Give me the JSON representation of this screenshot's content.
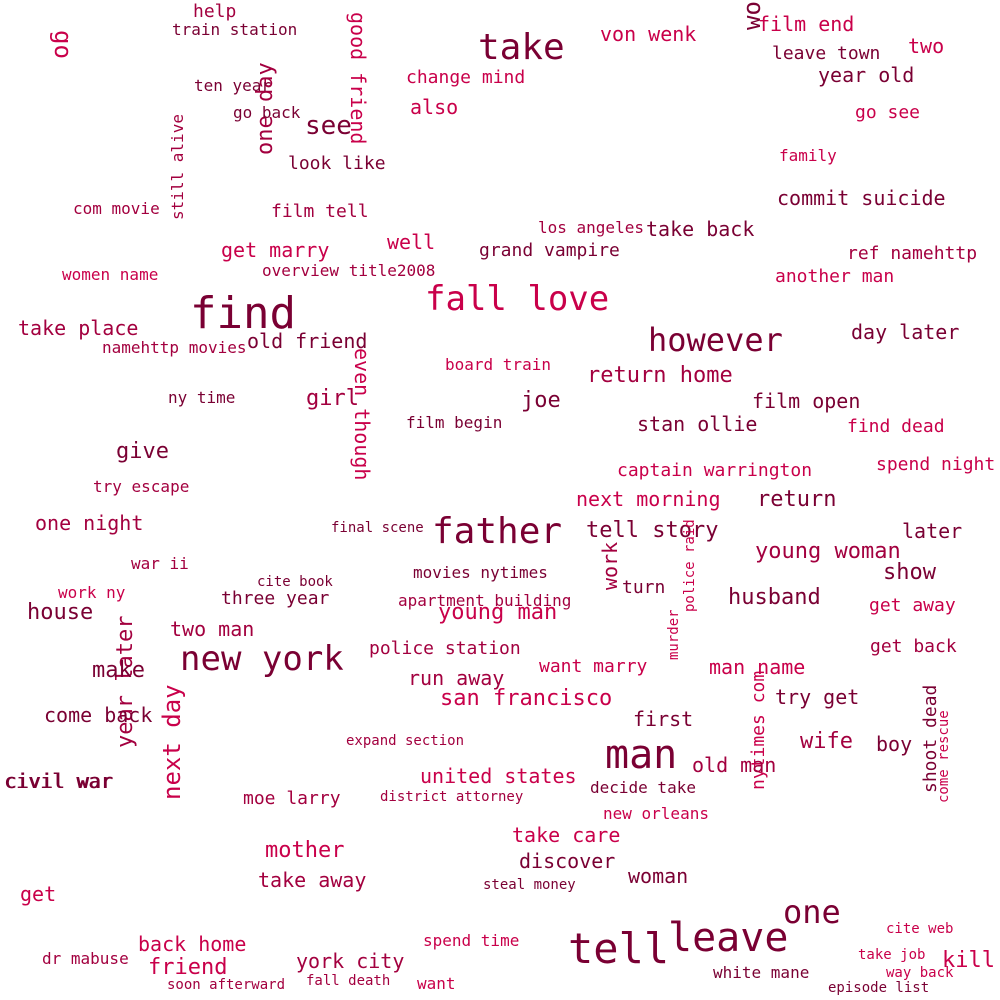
{
  "colors": [
    "#7a0033",
    "#a3003f",
    "#c9004a",
    "#e0005a",
    "#ff2a6a"
  ],
  "words": [
    {
      "t": "find",
      "c": 0
    },
    {
      "t": "fall love",
      "c": 2
    },
    {
      "t": "father",
      "c": 0
    },
    {
      "t": "new york",
      "c": 0
    },
    {
      "t": "man",
      "c": 0
    },
    {
      "t": "tell",
      "c": 0
    },
    {
      "t": "leave",
      "c": 0
    },
    {
      "t": "take",
      "c": 0
    },
    {
      "t": "however",
      "c": 0
    },
    {
      "t": "one",
      "c": 0
    },
    {
      "t": "see",
      "c": 0
    },
    {
      "t": "go",
      "c": 2
    },
    {
      "t": "world war",
      "c": 0
    },
    {
      "t": "good friend",
      "c": 2
    },
    {
      "t": "one day",
      "c": 1
    },
    {
      "t": "even though",
      "c": 2
    },
    {
      "t": "year later",
      "c": 1
    },
    {
      "t": "next day",
      "c": 2
    },
    {
      "t": "nytimes com",
      "c": 2
    },
    {
      "t": "work",
      "c": 1
    },
    {
      "t": "young woman",
      "c": 1
    },
    {
      "t": "young man",
      "c": 2
    },
    {
      "t": "san francisco",
      "c": 2
    },
    {
      "t": "return home",
      "c": 1
    },
    {
      "t": "take place",
      "c": 1
    },
    {
      "t": "commit suicide",
      "c": 0
    },
    {
      "t": "house",
      "c": 0
    },
    {
      "t": "return",
      "c": 0
    },
    {
      "t": "next morning",
      "c": 2
    },
    {
      "t": "tell story",
      "c": 0
    },
    {
      "t": "mother",
      "c": 2
    },
    {
      "t": "wife",
      "c": 1
    },
    {
      "t": "united states",
      "c": 2
    },
    {
      "t": "york city",
      "c": 1
    },
    {
      "t": "friend",
      "c": 2
    },
    {
      "t": "kill",
      "c": 2
    },
    {
      "t": "make",
      "c": 0
    },
    {
      "t": "give",
      "c": 0
    },
    {
      "t": "girl",
      "c": 1
    },
    {
      "t": "old friend",
      "c": 0
    },
    {
      "t": "get marry",
      "c": 2
    },
    {
      "t": "change mind",
      "c": 2
    },
    {
      "t": "von wenk",
      "c": 2
    },
    {
      "t": "film end",
      "c": 2
    },
    {
      "t": "year old",
      "c": 0
    },
    {
      "t": "take back",
      "c": 0
    },
    {
      "t": "husband",
      "c": 0
    },
    {
      "t": "stan ollie",
      "c": 0
    },
    {
      "t": "film open",
      "c": 0
    },
    {
      "t": "come back",
      "c": 0
    },
    {
      "t": "civil war",
      "c": 0
    },
    {
      "t": "show",
      "c": 0
    },
    {
      "t": "woman",
      "c": 0
    },
    {
      "t": "discover",
      "c": 0
    },
    {
      "t": "take away",
      "c": 1
    },
    {
      "t": "back home",
      "c": 2
    },
    {
      "t": "leave town",
      "c": 0
    },
    {
      "t": "two",
      "c": 2
    },
    {
      "t": "grand vampire",
      "c": 0
    },
    {
      "t": "another man",
      "c": 2
    },
    {
      "t": "day later",
      "c": 0
    },
    {
      "t": "captain warrington",
      "c": 2
    },
    {
      "t": "spend night",
      "c": 2
    },
    {
      "t": "two man",
      "c": 1
    },
    {
      "t": "run away",
      "c": 1
    },
    {
      "t": "first",
      "c": 0
    },
    {
      "t": "boy",
      "c": 0
    },
    {
      "t": "police station",
      "c": 1
    },
    {
      "t": "try get",
      "c": 0
    },
    {
      "t": "man name",
      "c": 2
    },
    {
      "t": "want marry",
      "c": 2
    },
    {
      "t": "take care",
      "c": 2
    },
    {
      "t": "moe larry",
      "c": 1
    },
    {
      "t": "civil war",
      "c": 0
    },
    {
      "t": "get",
      "c": 2
    },
    {
      "t": "joe",
      "c": 0
    },
    {
      "t": "also",
      "c": 2
    },
    {
      "t": "well",
      "c": 2
    },
    {
      "t": "look like",
      "c": 0
    },
    {
      "t": "film tell",
      "c": 1
    },
    {
      "t": "com movie",
      "c": 1
    },
    {
      "t": "one night",
      "c": 1
    },
    {
      "t": "try escape",
      "c": 1
    },
    {
      "t": "three year",
      "c": 0
    },
    {
      "t": "turn",
      "c": 0
    },
    {
      "t": "later",
      "c": 0
    },
    {
      "t": "get away",
      "c": 2
    },
    {
      "t": "get back",
      "c": 1
    },
    {
      "t": "old man",
      "c": 1
    },
    {
      "t": "shoot dead",
      "c": 0
    },
    {
      "t": "come rescue",
      "c": 2
    },
    {
      "t": "family",
      "c": 2
    },
    {
      "t": "go see",
      "c": 2
    },
    {
      "t": "ref namehttp",
      "c": 1
    },
    {
      "t": "find dead",
      "c": 2
    },
    {
      "t": "help",
      "c": 1
    },
    {
      "t": "train station",
      "c": 0
    },
    {
      "t": "ten year",
      "c": 0
    },
    {
      "t": "go back",
      "c": 0
    },
    {
      "t": "overview title2008",
      "c": 1
    },
    {
      "t": "los angeles",
      "c": 1
    },
    {
      "t": "namehttp movies",
      "c": 1
    },
    {
      "t": "ny time",
      "c": 0
    },
    {
      "t": "apartment building",
      "c": 1
    },
    {
      "t": "movies nytimes",
      "c": 0
    },
    {
      "t": "cite book",
      "c": 0
    },
    {
      "t": "police raid",
      "c": 2
    },
    {
      "t": "murder",
      "c": 2
    },
    {
      "t": "war ii",
      "c": 1
    },
    {
      "t": "work ny",
      "c": 2
    },
    {
      "t": "women name",
      "c": 2
    },
    {
      "t": "still alive",
      "c": 1
    },
    {
      "t": "board train",
      "c": 2
    },
    {
      "t": "film begin",
      "c": 0
    },
    {
      "t": "final scene",
      "c": 0
    },
    {
      "t": "expand section",
      "c": 1
    },
    {
      "t": "district attorney",
      "c": 1
    },
    {
      "t": "decide take",
      "c": 0
    },
    {
      "t": "new orleans",
      "c": 2
    },
    {
      "t": "steal money",
      "c": 0
    },
    {
      "t": "spend time",
      "c": 2
    },
    {
      "t": "want",
      "c": 2
    },
    {
      "t": "white mane",
      "c": 0
    },
    {
      "t": "episode list",
      "c": 0
    },
    {
      "t": "cite web",
      "c": 2
    },
    {
      "t": "take job",
      "c": 2
    },
    {
      "t": "way back",
      "c": 2
    },
    {
      "t": "dr mabuse",
      "c": 1
    },
    {
      "t": "fall death",
      "c": 1
    },
    {
      "t": "soon afterward",
      "c": 1
    }
  ]
}
